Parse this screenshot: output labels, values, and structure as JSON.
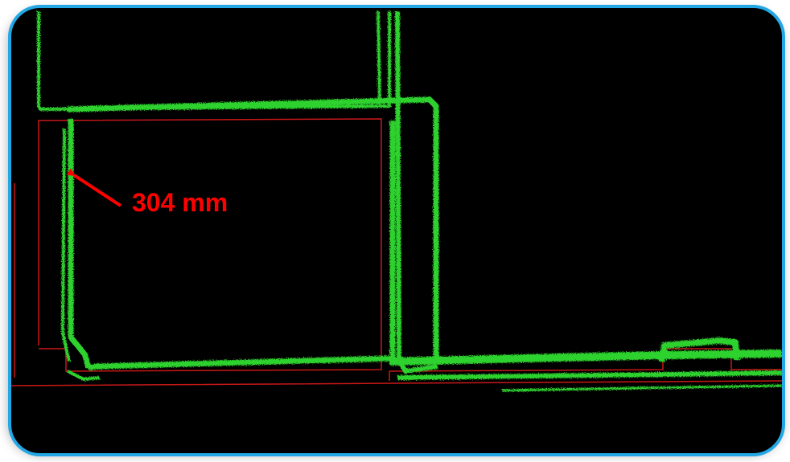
{
  "measurement": {
    "label": "304 mm"
  },
  "colors": {
    "frame_border": "#23a7e5",
    "background": "#000000",
    "point_cloud": "#2fd22f",
    "reference_outline": "#c81818",
    "annotation": "#ff0000"
  }
}
